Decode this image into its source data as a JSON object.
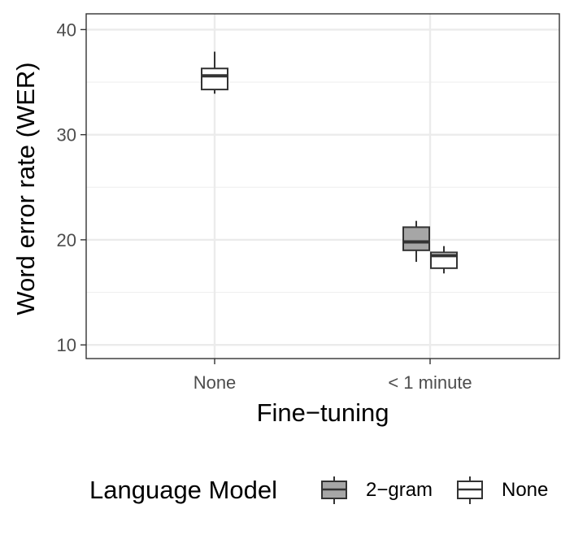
{
  "chart_data": {
    "type": "boxplot",
    "xlabel": "Fine−tuning",
    "ylabel": "Word error rate (WER)",
    "categories": [
      "None",
      "< 1 minute"
    ],
    "ylim": [
      8.7,
      41.5
    ],
    "yticks": [
      10,
      20,
      30,
      40
    ],
    "grid": true,
    "legend": {
      "title": "Language Model",
      "position": "bottom",
      "entries": [
        {
          "name": "2−gram",
          "fill": "#a6a6a6"
        },
        {
          "name": "None",
          "fill": "#ffffff"
        }
      ]
    },
    "series": [
      {
        "name": "2−gram",
        "fill": "#a6a6a6",
        "boxes": [
          {
            "category": "< 1 minute",
            "whisker_low": 17.9,
            "q1": 19.0,
            "median": 19.8,
            "q3": 21.2,
            "whisker_high": 21.8
          }
        ]
      },
      {
        "name": "None",
        "fill": "#ffffff",
        "boxes": [
          {
            "category": "None",
            "whisker_low": 33.9,
            "q1": 34.3,
            "median": 35.6,
            "q3": 36.3,
            "whisker_high": 37.9
          },
          {
            "category": "< 1 minute",
            "whisker_low": 16.8,
            "q1": 17.3,
            "median": 18.5,
            "q3": 18.8,
            "whisker_high": 19.4
          }
        ]
      }
    ]
  }
}
